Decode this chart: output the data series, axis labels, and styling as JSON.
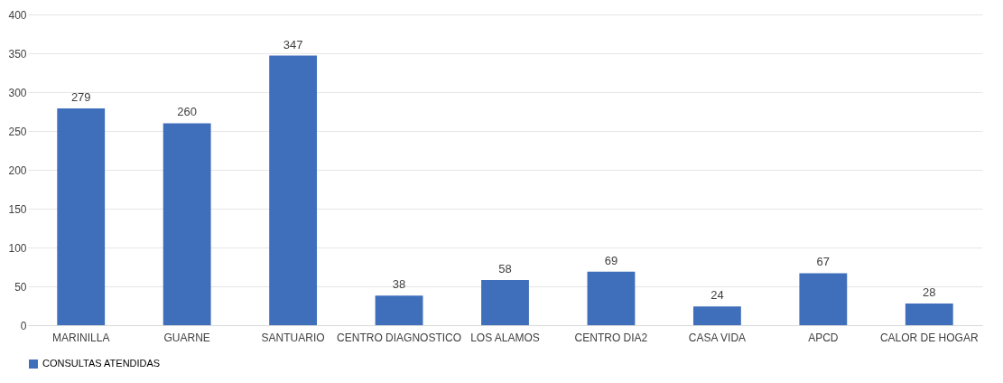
{
  "chart_data": {
    "type": "bar",
    "categories": [
      "MARINILLA",
      "GUARNE",
      "SANTUARIO",
      "CENTRO DIAGNOSTICO",
      "LOS ALAMOS",
      "CENTRO DIA2",
      "CASA VIDA",
      "APCD",
      "CALOR DE HOGAR"
    ],
    "series": [
      {
        "name": "CONSULTAS ATENDIDAS",
        "color": "#3f6fba",
        "values": [
          279,
          260,
          347,
          38,
          58,
          69,
          24,
          67,
          28
        ]
      }
    ],
    "ylim": [
      0,
      400
    ],
    "yticks": [
      0,
      50,
      100,
      150,
      200,
      250,
      300,
      350,
      400
    ],
    "grid": "y",
    "legend": "bottom",
    "data_labels": true
  }
}
